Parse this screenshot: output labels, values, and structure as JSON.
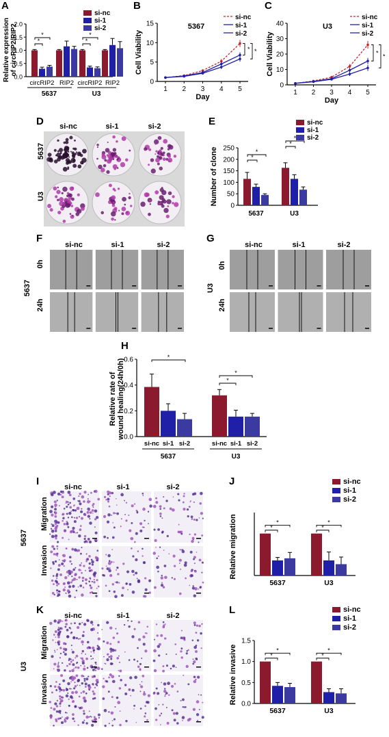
{
  "panel_letters": {
    "A": "A",
    "B": "B",
    "C": "C",
    "D": "D",
    "E": "E",
    "F": "F",
    "G": "G",
    "H": "H",
    "I": "I",
    "J": "J",
    "K": "K",
    "L": "L"
  },
  "colors": {
    "si_nc": "#8b1a2e",
    "si_1": "#1f1fa8",
    "si_2": "#3a3aa0",
    "line_nc": "#c0262d",
    "line_1": "#1f1fa8",
    "line_2": "#1f1fa8"
  },
  "groups": {
    "g5637": "5637",
    "gU3": "U3"
  },
  "legend": [
    "si-nc",
    "si-1",
    "si-2"
  ],
  "star": "*",
  "photo_headers": [
    "si-nc",
    "si-1",
    "si-2"
  ],
  "time_labels": [
    "0h",
    "24h"
  ],
  "assay_labels": [
    "Migration",
    "Invasion"
  ],
  "chart_data": [
    {
      "id": "A",
      "type": "bar",
      "ylabel": "Relative expression of circRIP2/RIP2",
      "ylim": [
        0,
        2.0
      ],
      "yticks": [
        "0.0",
        "0.5",
        "1.0",
        "1.5",
        "2.0"
      ],
      "categories": [
        "circRIP2",
        "RIP2",
        "circRIP2",
        "RIP2"
      ],
      "groups": [
        "5637",
        "U3"
      ],
      "series": [
        {
          "name": "si-nc",
          "values": [
            1.0,
            1.0,
            1.0,
            1.0
          ],
          "err": [
            0.03,
            0.03,
            0.03,
            0.03
          ]
        },
        {
          "name": "si-1",
          "values": [
            0.3,
            1.15,
            0.35,
            1.2
          ],
          "err": [
            0.06,
            0.2,
            0.05,
            0.25
          ]
        },
        {
          "name": "si-2",
          "values": [
            0.38,
            1.05,
            0.32,
            1.08
          ],
          "err": [
            0.05,
            0.1,
            0.05,
            0.25
          ]
        }
      ]
    },
    {
      "id": "B",
      "type": "line",
      "title": "5367",
      "xlabel": "Day",
      "ylabel": "Cell Viability",
      "x": [
        1,
        2,
        3,
        4,
        5
      ],
      "ylim": [
        0,
        15
      ],
      "yticks": [
        "0",
        "5",
        "10",
        "15"
      ],
      "series": [
        {
          "name": "si-nc",
          "values": [
            1.0,
            1.5,
            2.8,
            5.2,
            9.8
          ],
          "err": [
            0.1,
            0.2,
            0.3,
            0.6,
            0.9
          ]
        },
        {
          "name": "si-1",
          "values": [
            1.0,
            1.4,
            2.3,
            4.5,
            6.8
          ],
          "err": [
            0.1,
            0.2,
            0.3,
            0.5,
            0.7
          ]
        },
        {
          "name": "si-2",
          "values": [
            1.0,
            1.3,
            2.1,
            3.7,
            5.8
          ],
          "err": [
            0.1,
            0.2,
            0.3,
            0.5,
            0.7
          ]
        }
      ]
    },
    {
      "id": "C",
      "type": "line",
      "title": "U3",
      "xlabel": "Day",
      "ylabel": "Cell Viability",
      "x": [
        1,
        2,
        3,
        4,
        5
      ],
      "ylim": [
        0,
        40
      ],
      "yticks": [
        "0",
        "10",
        "20",
        "30",
        "40"
      ],
      "series": [
        {
          "name": "si-nc",
          "values": [
            1.0,
            2.5,
            5.0,
            12.0,
            26.0
          ],
          "err": [
            0.2,
            0.4,
            0.8,
            1.5,
            2.5
          ]
        },
        {
          "name": "si-1",
          "values": [
            1.0,
            2.2,
            4.0,
            9.5,
            15.5
          ],
          "err": [
            0.2,
            0.4,
            0.7,
            1.2,
            2.0
          ]
        },
        {
          "name": "si-2",
          "values": [
            1.0,
            2.0,
            3.6,
            7.0,
            11.0
          ],
          "err": [
            0.2,
            0.4,
            0.7,
            1.2,
            2.0
          ]
        }
      ]
    },
    {
      "id": "E",
      "type": "bar",
      "ylabel": "Number of clone",
      "ylim": [
        0,
        250
      ],
      "yticks": [
        "0",
        "50",
        "100",
        "150",
        "200",
        "250"
      ],
      "categories": [
        "5637",
        "U3"
      ],
      "series": [
        {
          "name": "si-nc",
          "values": [
            115,
            163
          ],
          "err": [
            28,
            22
          ]
        },
        {
          "name": "si-1",
          "values": [
            80,
            115
          ],
          "err": [
            12,
            18
          ]
        },
        {
          "name": "si-2",
          "values": [
            45,
            68
          ],
          "err": [
            5,
            12
          ]
        }
      ]
    },
    {
      "id": "H",
      "type": "bar",
      "ylabel": "Relative rate of wound healing(24h/0h)",
      "ylim": [
        0,
        0.6
      ],
      "yticks": [
        "0.0",
        "0.2",
        "0.4",
        "0.6"
      ],
      "categories": [
        "5637",
        "U3"
      ],
      "xticklabels": [
        "si-nc",
        "si-1",
        "si-2"
      ],
      "series": [
        {
          "name": "si-nc",
          "values": [
            0.385,
            0.32
          ],
          "err": [
            0.1,
            0.045
          ]
        },
        {
          "name": "si-1",
          "values": [
            0.2,
            0.155
          ],
          "err": [
            0.055,
            0.05
          ]
        },
        {
          "name": "si-2",
          "values": [
            0.135,
            0.155
          ],
          "err": [
            0.045,
            0.025
          ]
        }
      ]
    },
    {
      "id": "J",
      "type": "bar",
      "ylabel": "Relative migration",
      "ylim": [
        0,
        1.5
      ],
      "yticks": [],
      "categories": [
        "5637",
        "U3"
      ],
      "series": [
        {
          "name": "si-nc",
          "values": [
            1.0,
            1.0
          ],
          "err": [
            0.0,
            0.0
          ]
        },
        {
          "name": "si-1",
          "values": [
            0.36,
            0.36
          ],
          "err": [
            0.07,
            0.2
          ]
        },
        {
          "name": "si-2",
          "values": [
            0.41,
            0.27
          ],
          "err": [
            0.14,
            0.17
          ]
        }
      ]
    },
    {
      "id": "L",
      "type": "bar",
      "ylabel": "Relative invasive",
      "ylim": [
        0,
        1.5
      ],
      "yticks": [
        "0.0",
        "0.5",
        "1.0",
        "1.5"
      ],
      "categories": [
        "5637",
        "U3"
      ],
      "series": [
        {
          "name": "si-nc",
          "values": [
            1.0,
            1.0
          ],
          "err": [
            0.0,
            0.0
          ]
        },
        {
          "name": "si-1",
          "values": [
            0.42,
            0.27
          ],
          "err": [
            0.08,
            0.08
          ]
        },
        {
          "name": "si-2",
          "values": [
            0.39,
            0.24
          ],
          "err": [
            0.09,
            0.11
          ]
        }
      ]
    }
  ]
}
